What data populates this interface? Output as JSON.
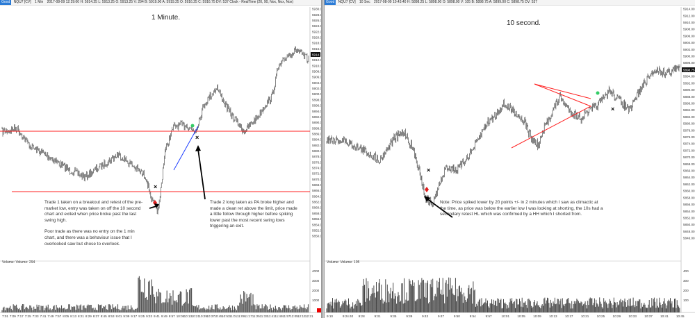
{
  "left_chart": {
    "status_prefix": "Good",
    "instrument": "NQU7 [CV]",
    "interval": "1 Min",
    "values_text": "2017-08-09 12:29:00  H: 5914.25  L: 5913.25  O: 5913.25  V: 294  B: 5919.00  A: 5919.25  O: 5916.25  C: 5916.75  DV: 537  Clock - RealTime  (20, 90, Nox, Nox, Nox)",
    "sub_label": "",
    "title": "1 Minute.",
    "note_trade1_para1": "Trade 1 taken on a breakout and retest of the pre-market low, entry was taken on off the 10 second chart and exited when price broke past the last swing high.",
    "note_trade1_para2": "Poor trade as there was no entry on the 1 min chart, and there was a behaviour issue that I overlooked saw but chose to overlook.",
    "note_trade2": "Trade 2 long taken as PA broke higher and made a clean ret above the limit, price made a little follow through higher before spiking lower past the most recent swing lows triggering an exit.",
    "volume_label": "Volume: Volume: 294",
    "price_ticks": [
      "5930.00",
      "5928.00",
      "5926.00",
      "5924.00",
      "5922.00",
      "5920.00",
      "5918.00",
      "5916.00",
      "5914.00",
      "5912.00",
      "5910.00",
      "5908.00",
      "5906.00",
      "5904.00",
      "5902.00",
      "5900.00",
      "5898.00",
      "5896.00",
      "5894.00",
      "5892.00",
      "5890.00",
      "5888.00",
      "5886.00",
      "5884.00",
      "5882.00",
      "5880.00",
      "5878.00",
      "5876.00",
      "5874.00",
      "5872.00",
      "5870.00",
      "5868.00",
      "5866.00",
      "5864.00",
      "5862.00",
      "5860.00",
      "5858.00",
      "5856.00",
      "5854.00",
      "5852.00",
      "5850.00"
    ],
    "last_price": "5914.75",
    "volume_ticks": [
      "4000",
      "3000",
      "2000",
      "1000"
    ],
    "time_ticks": [
      "7:01",
      "7:09",
      "7:17",
      "7:25",
      "7:33",
      "7:41",
      "7:49",
      "7:57",
      "8:05",
      "8:13",
      "8:21",
      "8:29",
      "8:37",
      "8:45",
      "8:53",
      "9:01",
      "9:09",
      "9:17",
      "9:25",
      "9:33",
      "9:41",
      "9:49",
      "9:57",
      "10:05",
      "10:13",
      "10:21",
      "10:29",
      "10:37",
      "10:45",
      "10:53",
      "11:01",
      "11:09",
      "11:17",
      "11:25",
      "11:33",
      "11:41",
      "11:49",
      "11:57",
      "12:05",
      "12:13",
      "12:21"
    ],
    "colors": {
      "level_line": "#ff2020",
      "trend_line": "#2040ff",
      "candle": "#333333",
      "volume": "#555555"
    }
  },
  "right_chart": {
    "status_prefix": "Good",
    "instrument": "NQU7 [CV]",
    "interval": "10 Sec",
    "values_text": "2017-08-09 10:43:40  H: 5898.25  L: 5898.00  O: 5898.00  V: 105  B: 5898.75  A: 5899.00  C: 5898.75  DV: 537",
    "title": "10 second.",
    "note": "Note: Price spiked lower by 20 points +/- in 2 minutes which I saw as climactic at the time, as price was below the earlier low I was looking at shorting, the 10s had a secondary retest HL which was confirmed by a HH which I shorted from.",
    "volume_label": "Volume: Volume: 105",
    "price_ticks": [
      "5914.00",
      "5912.00",
      "5910.00",
      "5908.00",
      "5906.00",
      "5904.00",
      "5902.00",
      "5900.00",
      "5898.00",
      "5896.00",
      "5894.00",
      "5892.00",
      "5890.00",
      "5888.00",
      "5886.00",
      "5884.00",
      "5882.00",
      "5880.00",
      "5878.00",
      "5876.00",
      "5874.00",
      "5872.00",
      "5870.00",
      "5868.00",
      "5866.00",
      "5864.00",
      "5862.00",
      "5860.00",
      "5858.00",
      "5856.00",
      "5854.00",
      "5852.00",
      "5850.00",
      "5848.00",
      "5846.00"
    ],
    "last_price": "5898.75",
    "volume_ticks": [
      "400",
      "300",
      "200",
      "100"
    ],
    "time_ticks": [
      "9:10",
      "9:24:40",
      "9:28",
      "9:31",
      "9:35",
      "9:39",
      "9:43",
      "9:47",
      "9:50",
      "9:54",
      "9:57",
      "10:01",
      "10:05",
      "10:09",
      "10:13",
      "10:17",
      "10:21",
      "10:25",
      "10:29",
      "10:33",
      "10:37",
      "10:41",
      "10:45"
    ],
    "colors": {
      "triangle": "#ff2020",
      "candle": "#333333",
      "volume": "#444444"
    }
  }
}
